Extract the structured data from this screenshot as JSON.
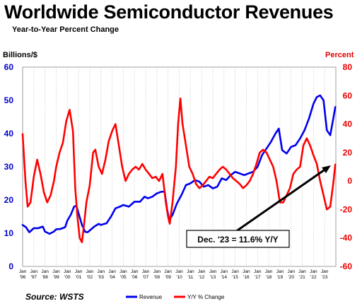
{
  "title": "Worldwide Semiconductor Revenues",
  "subtitle": "Year-to-Year Percent Change",
  "source": "Source: WSTS",
  "colors": {
    "revenue": "#0000ee",
    "yoy": "#ff0000",
    "left_axis": "#0000cc",
    "right_axis": "#ee0000",
    "annotation_arrow": "#000000"
  },
  "chart_data": {
    "type": "line",
    "title": "Worldwide Semiconductor Revenues",
    "subtitle": "Year-to-Year Percent Change",
    "y_left": {
      "label": "Billions/$",
      "range": [
        0,
        60
      ],
      "ticks": [
        "0",
        "10",
        "20",
        "30",
        "40",
        "50",
        "60"
      ]
    },
    "y_right": {
      "label": "Percent",
      "range": [
        -60,
        80
      ],
      "ticks": [
        "-60",
        "-40",
        "-20",
        "0",
        "20",
        "40",
        "60",
        "80"
      ]
    },
    "x_ticks": [
      {
        "top": "Jan",
        "bottom": "'96"
      },
      {
        "top": "Jan",
        "bottom": "'97"
      },
      {
        "top": "Jan",
        "bottom": "'98"
      },
      {
        "top": "Jan",
        "bottom": "'99"
      },
      {
        "top": "Jan",
        "bottom": "'00"
      },
      {
        "top": "Jan",
        "bottom": "'01"
      },
      {
        "top": "Jan",
        "bottom": "'02"
      },
      {
        "top": "Jan",
        "bottom": "'03"
      },
      {
        "top": "Jan",
        "bottom": "'04"
      },
      {
        "top": "Jan",
        "bottom": "'05"
      },
      {
        "top": "Jan",
        "bottom": "'06"
      },
      {
        "top": "Jan",
        "bottom": "'07"
      },
      {
        "top": "Jan",
        "bottom": "'08"
      },
      {
        "top": "Jan",
        "bottom": "'09"
      },
      {
        "top": "Jan",
        "bottom": "'10"
      },
      {
        "top": "Jan",
        "bottom": "'11"
      },
      {
        "top": "Jan",
        "bottom": "'12"
      },
      {
        "top": "Jan",
        "bottom": "'13"
      },
      {
        "top": "Jan",
        "bottom": "'14"
      },
      {
        "top": "Jan",
        "bottom": "'15"
      },
      {
        "top": "Jan",
        "bottom": "'16"
      },
      {
        "top": "Jan",
        "bottom": "'17"
      },
      {
        "top": "Jan",
        "bottom": "'18"
      },
      {
        "top": "Jan",
        "bottom": "'19"
      },
      {
        "top": "Jan",
        "bottom": "'20"
      },
      {
        "top": "Jan",
        "bottom": "'21"
      },
      {
        "top": "Jan",
        "bottom": "'22"
      },
      {
        "top": "Jan",
        "bottom": "'23"
      }
    ],
    "x_range": [
      1996.0,
      2024.0
    ],
    "grid": "vertical",
    "legend_position": "bottom",
    "series": [
      {
        "name": "Revenue",
        "axis": "left",
        "x": [
          1996.0,
          1996.3,
          1996.6,
          1997.0,
          1997.4,
          1997.8,
          1998.0,
          1998.4,
          1998.8,
          1999.0,
          1999.4,
          1999.8,
          2000.0,
          2000.3,
          2000.6,
          2000.8,
          2001.0,
          2001.3,
          2001.6,
          2001.8,
          2002.0,
          2002.4,
          2002.8,
          2003.0,
          2003.5,
          2003.9,
          2004.3,
          2004.7,
          2005.0,
          2005.5,
          2006.0,
          2006.5,
          2006.9,
          2007.2,
          2007.6,
          2008.0,
          2008.4,
          2008.7,
          2008.9,
          2009.1,
          2009.4,
          2009.8,
          2010.2,
          2010.6,
          2011.0,
          2011.4,
          2011.8,
          2012.2,
          2012.6,
          2013.0,
          2013.4,
          2013.8,
          2014.2,
          2014.6,
          2015.0,
          2015.4,
          2015.8,
          2016.2,
          2016.6,
          2017.0,
          2017.4,
          2017.8,
          2018.2,
          2018.6,
          2018.9,
          2019.2,
          2019.6,
          2020.0,
          2020.4,
          2020.8,
          2021.2,
          2021.6,
          2022.0,
          2022.3,
          2022.6,
          2022.9,
          2023.2,
          2023.5,
          2023.8,
          2023.95
        ],
        "values": [
          12.5,
          11.8,
          10.3,
          11.5,
          11.5,
          12.0,
          10.5,
          9.8,
          10.5,
          11.2,
          11.3,
          11.8,
          13.8,
          15.5,
          18.0,
          18.3,
          16.0,
          12.5,
          10.4,
          10.3,
          10.8,
          12.0,
          12.8,
          12.5,
          13.0,
          15.0,
          17.5,
          18.0,
          18.5,
          18.0,
          19.5,
          19.5,
          21.0,
          20.5,
          21.0,
          22.0,
          22.5,
          22.5,
          17.5,
          14.0,
          15.5,
          19.0,
          21.5,
          24.5,
          25.0,
          26.0,
          25.5,
          24.0,
          24.5,
          23.5,
          24.0,
          26.5,
          26.0,
          27.5,
          28.5,
          28.0,
          27.5,
          28.0,
          28.5,
          30.0,
          33.5,
          35.5,
          37.5,
          40.0,
          41.5,
          35.0,
          34.0,
          36.0,
          36.5,
          38.5,
          41.0,
          44.5,
          49.0,
          51.0,
          51.5,
          50.0,
          41.0,
          39.5,
          45.0,
          48.0
        ]
      },
      {
        "name": "Y/Y % Change",
        "axis": "right",
        "x": [
          1996.0,
          1996.25,
          1996.45,
          1996.7,
          1997.0,
          1997.3,
          1997.6,
          1997.9,
          1998.2,
          1998.5,
          1998.8,
          1999.0,
          1999.3,
          1999.6,
          1999.9,
          2000.2,
          2000.5,
          2000.7,
          2000.9,
          2001.1,
          2001.3,
          2001.5,
          2001.7,
          2002.0,
          2002.3,
          2002.5,
          2002.8,
          2003.1,
          2003.4,
          2003.7,
          2004.0,
          2004.3,
          2004.6,
          2004.9,
          2005.2,
          2005.5,
          2005.8,
          2006.1,
          2006.4,
          2006.7,
          2007.0,
          2007.3,
          2007.6,
          2007.9,
          2008.2,
          2008.5,
          2008.8,
          2009.0,
          2009.15,
          2009.4,
          2009.7,
          2009.9,
          2010.1,
          2010.3,
          2010.6,
          2010.9,
          2011.2,
          2011.5,
          2011.8,
          2012.1,
          2012.4,
          2012.7,
          2013.0,
          2013.3,
          2013.6,
          2013.9,
          2014.2,
          2014.5,
          2014.8,
          2015.1,
          2015.4,
          2015.7,
          2016.0,
          2016.3,
          2016.6,
          2016.9,
          2017.2,
          2017.5,
          2017.8,
          2018.1,
          2018.4,
          2018.7,
          2019.0,
          2019.3,
          2019.6,
          2019.9,
          2020.2,
          2020.5,
          2020.8,
          2021.1,
          2021.4,
          2021.7,
          2022.0,
          2022.3,
          2022.6,
          2022.9,
          2023.2,
          2023.5,
          2023.8,
          2023.95
        ],
        "values": [
          33,
          0,
          -18,
          -15,
          3,
          15,
          5,
          -8,
          -15,
          -10,
          0,
          10,
          20,
          27,
          42,
          50,
          35,
          -5,
          -25,
          -40,
          -43,
          -30,
          -15,
          -3,
          20,
          22,
          10,
          5,
          15,
          28,
          35,
          40,
          25,
          10,
          0,
          5,
          8,
          10,
          8,
          12,
          8,
          5,
          2,
          3,
          0,
          5,
          -15,
          -25,
          -30,
          -15,
          10,
          40,
          58,
          40,
          25,
          10,
          5,
          -2,
          -5,
          -3,
          0,
          3,
          2,
          5,
          8,
          10,
          8,
          5,
          2,
          0,
          -2,
          -5,
          -3,
          0,
          5,
          12,
          20,
          22,
          20,
          15,
          10,
          0,
          -15,
          -15,
          -10,
          -5,
          5,
          8,
          10,
          25,
          30,
          25,
          18,
          12,
          0,
          -10,
          -20,
          -18,
          0,
          11.6
        ]
      }
    ],
    "annotation": "Dec. '23 = 11.6% Y/Y"
  },
  "legend": {
    "revenue_label": "Revenue",
    "yoy_label": "Y/Y % Change"
  }
}
